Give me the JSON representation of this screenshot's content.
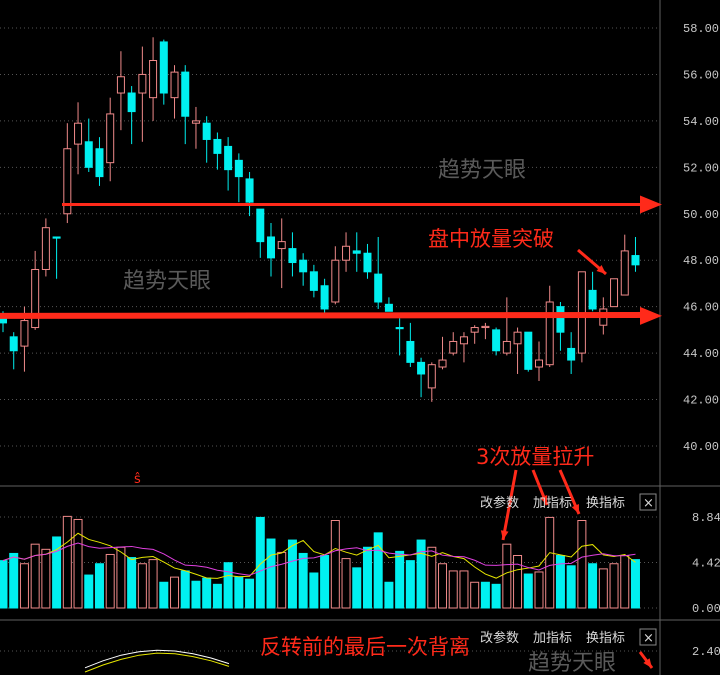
{
  "chart_data": {
    "type": "candlestick",
    "price_axis": {
      "ylim": [
        39.0,
        58.6
      ],
      "tick_labels": [
        "58.00",
        "56.00",
        "54.00",
        "52.00",
        "50.00",
        "48.00",
        "46.00",
        "44.00",
        "42.00",
        "40.00"
      ],
      "grid": "dotted"
    },
    "colors": {
      "up": "#f08a8a",
      "down": "#00f0f0",
      "ma_fast": "#e6e600",
      "ma_slow": "#e040e0",
      "annotation": "#ff2a1a",
      "axis": "#606060",
      "watermark": "#5a5a5a"
    },
    "candles": [
      [
        45.6,
        45.8,
        44.9,
        45.3
      ],
      [
        44.7,
        44.9,
        43.3,
        44.1
      ],
      [
        44.3,
        46.0,
        43.2,
        45.4
      ],
      [
        45.1,
        48.4,
        45.0,
        47.6
      ],
      [
        47.6,
        49.8,
        47.3,
        49.4
      ],
      [
        49.0,
        49.0,
        47.2,
        48.95
      ],
      [
        50.0,
        53.9,
        49.6,
        52.8
      ],
      [
        53.0,
        54.8,
        51.7,
        53.9
      ],
      [
        53.1,
        54.1,
        51.8,
        52.0
      ],
      [
        52.8,
        53.3,
        51.2,
        51.6
      ],
      [
        52.2,
        55.0,
        51.4,
        54.3
      ],
      [
        55.2,
        57.0,
        53.6,
        55.9
      ],
      [
        55.2,
        55.5,
        53.0,
        54.4
      ],
      [
        55.2,
        57.2,
        53.1,
        56.0
      ],
      [
        55.0,
        57.6,
        54.0,
        56.6
      ],
      [
        57.4,
        57.5,
        54.7,
        55.2
      ],
      [
        55.0,
        56.4,
        54.1,
        56.1
      ],
      [
        56.1,
        56.4,
        53.0,
        54.2
      ],
      [
        53.9,
        54.6,
        52.8,
        54.0
      ],
      [
        53.9,
        54.2,
        52.2,
        53.2
      ],
      [
        53.2,
        53.5,
        51.9,
        52.6
      ],
      [
        52.9,
        53.3,
        51.0,
        51.9
      ],
      [
        52.3,
        52.6,
        50.5,
        51.6
      ],
      [
        51.5,
        51.8,
        49.9,
        50.5
      ],
      [
        50.2,
        50.2,
        48.1,
        48.8
      ],
      [
        49.0,
        49.6,
        47.3,
        48.1
      ],
      [
        48.5,
        49.8,
        46.8,
        48.8
      ],
      [
        48.5,
        49.2,
        47.3,
        47.9
      ],
      [
        48.0,
        48.3,
        46.9,
        47.5
      ],
      [
        47.5,
        47.8,
        46.4,
        46.7
      ],
      [
        46.9,
        47.2,
        45.7,
        45.9
      ],
      [
        46.2,
        48.6,
        46.1,
        48.0
      ],
      [
        48.0,
        49.2,
        47.5,
        48.6
      ],
      [
        48.4,
        49.2,
        47.5,
        48.3
      ],
      [
        48.3,
        48.7,
        47.2,
        47.5
      ],
      [
        47.4,
        49.0,
        45.9,
        46.2
      ],
      [
        46.1,
        46.4,
        45.8,
        45.8
      ],
      [
        45.1,
        45.5,
        43.9,
        45.05
      ],
      [
        44.5,
        45.3,
        43.4,
        43.6
      ],
      [
        43.6,
        43.8,
        42.1,
        43.1
      ],
      [
        42.5,
        43.6,
        41.9,
        43.5
      ],
      [
        43.4,
        44.7,
        43.3,
        43.7
      ],
      [
        44.0,
        44.9,
        43.9,
        44.5
      ],
      [
        44.4,
        44.9,
        43.6,
        44.7
      ],
      [
        44.9,
        45.2,
        44.4,
        45.1
      ],
      [
        45.1,
        45.3,
        44.6,
        45.15
      ],
      [
        45.0,
        45.1,
        43.9,
        44.1
      ],
      [
        44.0,
        46.4,
        43.9,
        44.5
      ],
      [
        44.4,
        45.1,
        43.1,
        44.9
      ],
      [
        44.9,
        44.9,
        43.2,
        43.3
      ],
      [
        43.4,
        44.5,
        42.8,
        43.7
      ],
      [
        43.5,
        46.9,
        43.4,
        46.2
      ],
      [
        46.0,
        46.2,
        44.1,
        44.9
      ],
      [
        44.2,
        44.9,
        43.1,
        43.7
      ],
      [
        44.0,
        47.5,
        43.6,
        47.5
      ],
      [
        46.7,
        47.5,
        45.8,
        45.9
      ],
      [
        45.2,
        46.4,
        44.8,
        45.9
      ],
      [
        46.0,
        47.2,
        46.0,
        47.2
      ],
      [
        46.5,
        49.1,
        46.5,
        48.4
      ],
      [
        48.2,
        49.0,
        47.5,
        47.8
      ]
    ],
    "volume": {
      "ylim": [
        0,
        8.84
      ],
      "tick_labels": [
        "8.84",
        "4.42",
        "0.00"
      ],
      "values": [
        4.6,
        5.3,
        4.3,
        6.2,
        5.7,
        6.9,
        8.9,
        8.6,
        3.2,
        4.3,
        5.2,
        5.9,
        4.9,
        4.3,
        4.7,
        2.5,
        3.0,
        3.6,
        2.6,
        2.9,
        2.3,
        4.4,
        3.0,
        2.8,
        8.8,
        6.7,
        5.4,
        6.6,
        5.3,
        3.4,
        5.1,
        8.5,
        4.8,
        3.9,
        5.9,
        7.3,
        2.5,
        5.5,
        4.6,
        6.6,
        5.9,
        4.3,
        3.6,
        3.6,
        2.5,
        2.5,
        2.3,
        6.2,
        5.1,
        3.3,
        3.5,
        8.8,
        5.1,
        4.1,
        8.5,
        4.3,
        3.8,
        4.3,
        5.1,
        4.7
      ],
      "up": [
        0,
        0,
        1,
        1,
        1,
        0,
        1,
        1,
        0,
        0,
        1,
        1,
        0,
        1,
        1,
        0,
        1,
        0,
        0,
        0,
        0,
        0,
        0,
        0,
        0,
        0,
        1,
        0,
        0,
        0,
        0,
        1,
        1,
        0,
        0,
        0,
        0,
        0,
        0,
        0,
        1,
        1,
        1,
        1,
        1,
        0,
        0,
        1,
        1,
        0,
        1,
        1,
        0,
        0,
        1,
        0,
        1,
        1,
        1,
        0
      ]
    },
    "indicator": {
      "tick_labels": [
        "2.40"
      ],
      "line1": [
        1.2,
        1.7,
        2.1,
        2.35,
        2.45,
        2.4,
        2.2,
        1.9,
        1.5
      ],
      "line2": [
        0.9,
        1.4,
        1.8,
        2.1,
        2.25,
        2.2,
        2.0,
        1.7,
        1.3
      ]
    },
    "horizontal_lines": [
      50.4,
      45.6
    ]
  },
  "panel_buttons": {
    "params": "改参数",
    "add": "加指标",
    "switch": "换指标",
    "close": "×"
  },
  "annotations": {
    "breakout": "盘中放量突破",
    "volume_push": "3次放量拉升",
    "divergence": "反转前的最后一次背离",
    "marker": "ŝ"
  },
  "watermark": "趋势天眼"
}
